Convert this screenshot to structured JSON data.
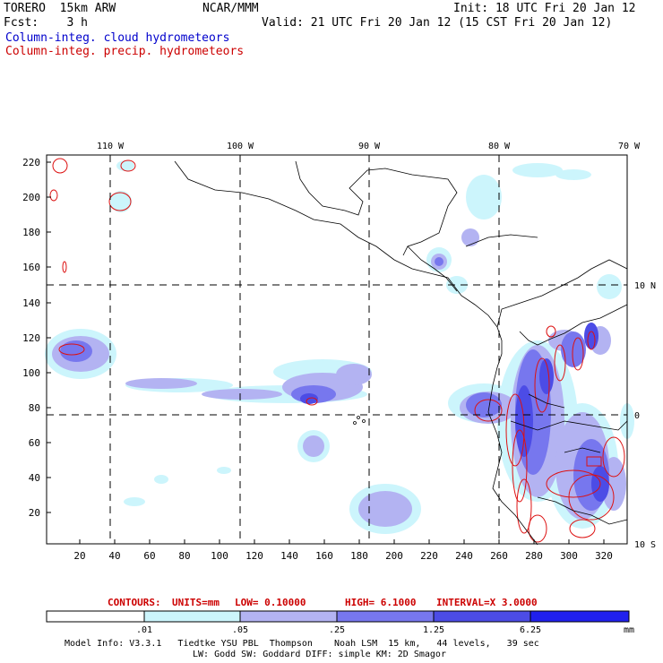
{
  "header": {
    "model": "TORERO  15km ARW",
    "org": "NCAR/MMM",
    "init": "Init: 18 UTC Fri 20 Jan 12",
    "fcst": "Fcst:    3 h",
    "valid": "Valid: 21 UTC Fri 20 Jan 12 (15 CST Fri 20 Jan 12)",
    "field1": "Column-integ. cloud hydrometeors",
    "field2": "Column-integ. precip. hydrometeors"
  },
  "map": {
    "lon_labels": [
      "110 W",
      "100 W",
      "90 W",
      "80 W",
      "70 W"
    ],
    "lat_labels": [
      "10 N",
      "0",
      "10 S"
    ],
    "y_ticks": [
      "220",
      "200",
      "180",
      "160",
      "140",
      "120",
      "100",
      "80",
      "60",
      "40",
      "20"
    ],
    "x_ticks": [
      "20",
      "40",
      "60",
      "80",
      "100",
      "120",
      "140",
      "160",
      "180",
      "200",
      "220",
      "240",
      "260",
      "280",
      "300",
      "320"
    ]
  },
  "contours": {
    "label": "CONTOURS:",
    "units": "UNITS=mm",
    "low": "LOW= 0.10000",
    "high": "HIGH=  6.1000",
    "interval": "INTERVAL=X  3.0000"
  },
  "colorbar": {
    "levels": [
      ".01",
      ".05",
      ".25",
      "1.25",
      "6.25"
    ],
    "unit": "mm",
    "colors": [
      "#ffffff",
      "#ccf5fc",
      "#b3b3f2",
      "#7777ee",
      "#4c4ce6",
      "#2020ee"
    ]
  },
  "footer": {
    "line1": "Model Info: V3.3.1   Tiedtke YSU PBL  Thompson    Noah LSM  15 km,   44 levels,   39 sec",
    "line2": "LW: Godd SW: Goddard DIFF: simple KM: 2D Smagor"
  }
}
